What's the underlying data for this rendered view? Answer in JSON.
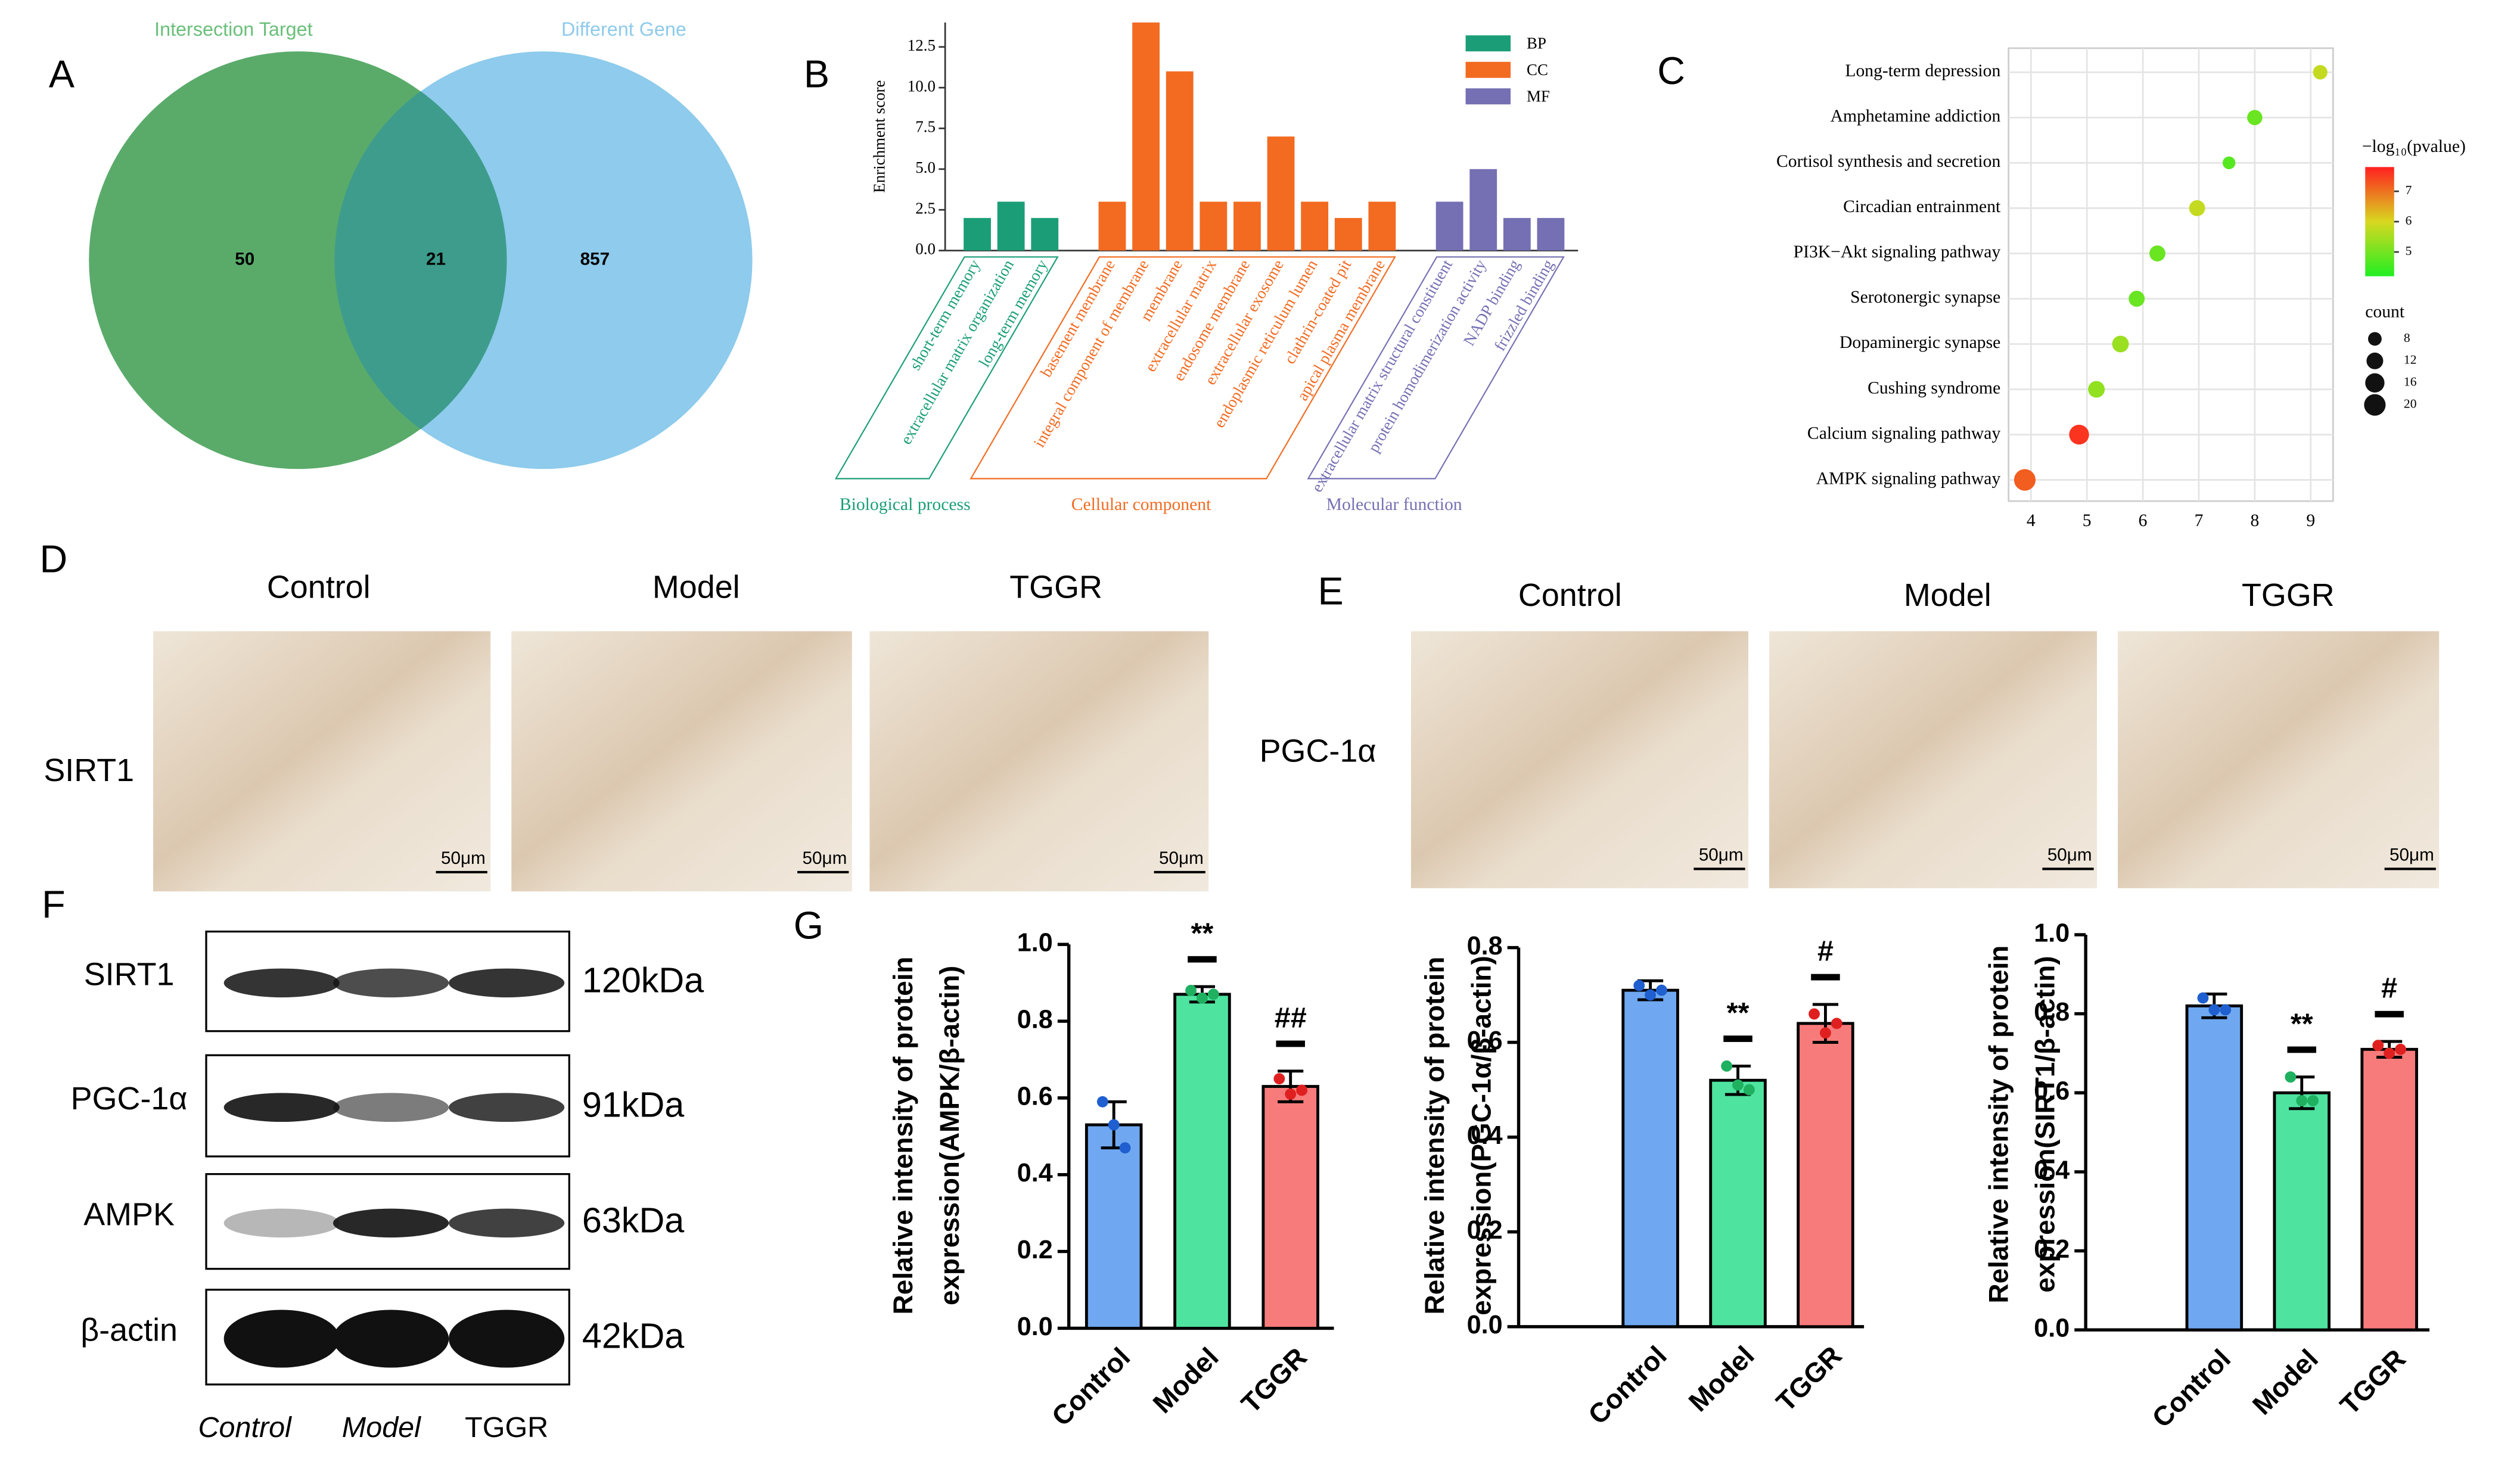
{
  "panel_labels": [
    "A",
    "B",
    "C",
    "D",
    "E",
    "F",
    "G"
  ],
  "venn": {
    "sets": [
      {
        "name": "Intersection Target",
        "color": "#5aab6a"
      },
      {
        "name": "Different Gene",
        "color": "#8ecbec"
      }
    ],
    "overlap_color": "#3e9c8c",
    "counts": [
      50,
      21,
      857
    ]
  },
  "chart_data": [
    {
      "type": "bar",
      "ylabel": "Enrichment score",
      "ylim": [
        0,
        14
      ],
      "yticks": [
        {
          "value": 0,
          "label": "0.0"
        },
        2.5,
        {
          "value": 5,
          "label": "5.0"
        },
        7.5,
        {
          "value": 10,
          "label": "10.0"
        },
        12.5
      ],
      "legend": "upper right",
      "series": [
        {
          "name": "BP",
          "group": "Biological process",
          "color": "#1b9e77",
          "categories": [
            "short-term memory",
            "extracellular matrix organization",
            "long-term memory"
          ],
          "values": [
            2,
            3,
            2
          ]
        },
        {
          "name": "CC",
          "group": "Cellular component",
          "color": "#f26b21",
          "categories": [
            "basement membrane",
            "integral component of membrane",
            "membrane",
            "extracellular matrix",
            "endosome membrane",
            "extracellular exosome",
            "endoplasmic reticulum lumen",
            "clathrin-coated pit",
            "apical plasma membrane"
          ],
          "values": [
            3,
            14,
            11,
            3,
            3,
            7,
            3,
            2,
            3
          ]
        },
        {
          "name": "MF",
          "group": "Molecular function",
          "color": "#7570b3",
          "categories": [
            "extracellular matrix structural constituent",
            "protein homodimerization activity",
            "NADP binding",
            "frizzled binding"
          ],
          "values": [
            3,
            5,
            2,
            2
          ]
        }
      ]
    },
    {
      "type": "scatter",
      "categories": [
        "Long-term depression",
        "Amphetamine addiction",
        "Cortisol synthesis and secretion",
        "Circadian entrainment",
        "PI3K−Akt signaling pathway",
        "Serotonergic synapse",
        "Dopaminergic synapse",
        "Cushing syndrome",
        "Calcium signaling pathway",
        "AMPK signaling pathway"
      ],
      "x": [
        9.17,
        8.0,
        7.54,
        6.97,
        6.26,
        5.89,
        5.6,
        5.17,
        4.86,
        3.89
      ],
      "sizes": [
        9,
        10,
        7,
        11,
        11,
        11,
        12,
        12,
        17,
        20
      ],
      "color_values": [
        5.8,
        4.9,
        4.7,
        5.8,
        4.9,
        4.9,
        5.4,
        5.3,
        7.6,
        7.2
      ],
      "xlim": [
        3.6,
        9.4
      ],
      "xticks": [
        4,
        5,
        6,
        7,
        8,
        9
      ],
      "grid": true,
      "colorbar": {
        "title": "−log₁₀(pvalue)",
        "clim": [
          4.2,
          7.8
        ],
        "ticks": [
          5,
          6,
          7
        ],
        "colors": [
          "#22ee22",
          "#d8d820",
          "#ff2020"
        ]
      },
      "size_legend": {
        "title": "count",
        "values": [
          8,
          12,
          16,
          20
        ]
      }
    },
    {
      "type": "bar",
      "ylabel": [
        "Relative intensity of protein",
        "expression(AMPK/β-actin)"
      ],
      "categories": [
        "Control",
        "Model",
        "TGGR"
      ],
      "values": [
        0.53,
        0.87,
        0.63
      ],
      "errors": [
        0.06,
        0.02,
        0.04
      ],
      "points": [
        [
          0.59,
          0.53,
          0.47
        ],
        [
          0.88,
          0.86,
          0.87
        ],
        [
          0.65,
          0.61,
          0.62
        ]
      ],
      "colors": [
        "#6fa8f0",
        "#4fe3a0",
        "#f87b7b"
      ],
      "point_colors": [
        "#1f5fd0",
        "#1fb060",
        "#e02020"
      ],
      "annotations": [
        null,
        "**",
        "##"
      ],
      "ylim": [
        0,
        1.0
      ],
      "yticks": [
        {
          "value": 0,
          "label": "0.0"
        },
        0.2,
        0.4,
        0.6,
        0.8,
        {
          "value": 1.0,
          "label": "1.0"
        }
      ]
    },
    {
      "type": "bar",
      "ylabel": [
        "Relative intensity of protein",
        "expression(PGC-1α/β-actin)"
      ],
      "categories": [
        "Control",
        "Model",
        "TGGR"
      ],
      "values": [
        0.71,
        0.52,
        0.64
      ],
      "errors": [
        0.02,
        0.03,
        0.04
      ],
      "points": [
        [
          0.72,
          0.7,
          0.71
        ],
        [
          0.55,
          0.51,
          0.5
        ],
        [
          0.66,
          0.62,
          0.64
        ]
      ],
      "colors": [
        "#6fa8f0",
        "#4fe3a0",
        "#f87b7b"
      ],
      "point_colors": [
        "#1f5fd0",
        "#1fb060",
        "#e02020"
      ],
      "annotations": [
        null,
        "**",
        "#"
      ],
      "ylim": [
        0,
        0.8
      ],
      "yticks": [
        {
          "value": 0,
          "label": "0.0"
        },
        0.2,
        0.4,
        0.6,
        0.8
      ]
    },
    {
      "type": "bar",
      "ylabel": [
        "Relative intensity of protein",
        "expression(SIRT1/β-actin)"
      ],
      "categories": [
        "Control",
        "Model",
        "TGGR"
      ],
      "values": [
        0.82,
        0.6,
        0.71
      ],
      "errors": [
        0.03,
        0.04,
        0.02
      ],
      "points": [
        [
          0.84,
          0.81,
          0.81
        ],
        [
          0.64,
          0.58,
          0.58
        ],
        [
          0.72,
          0.7,
          0.71
        ]
      ],
      "colors": [
        "#6fa8f0",
        "#4fe3a0",
        "#f87b7b"
      ],
      "point_colors": [
        "#1f5fd0",
        "#1fb060",
        "#e02020"
      ],
      "annotations": [
        null,
        "**",
        "#"
      ],
      "ylim": [
        0,
        1.0
      ],
      "yticks": [
        {
          "value": 0,
          "label": "0.0"
        },
        0.2,
        0.4,
        0.6,
        0.8,
        {
          "value": 1.0,
          "label": "1.0"
        }
      ]
    }
  ],
  "ihc": [
    {
      "stain": "SIRT1",
      "groups": [
        "Control",
        "Model",
        "TGGR"
      ],
      "scale_bar": "50μm"
    },
    {
      "stain": "PGC-1α",
      "groups": [
        "Control",
        "Model",
        "TGGR"
      ],
      "scale_bar": "50μm"
    }
  ],
  "blot": {
    "proteins": [
      {
        "name": "SIRT1",
        "size": "120kDa"
      },
      {
        "name": "PGC-1α",
        "size": "91kDa"
      },
      {
        "name": "AMPK",
        "size": "63kDa"
      },
      {
        "name": "β-actin",
        "size": "42kDa"
      }
    ],
    "lanes": [
      "Control",
      "Model",
      "TGGR"
    ]
  }
}
